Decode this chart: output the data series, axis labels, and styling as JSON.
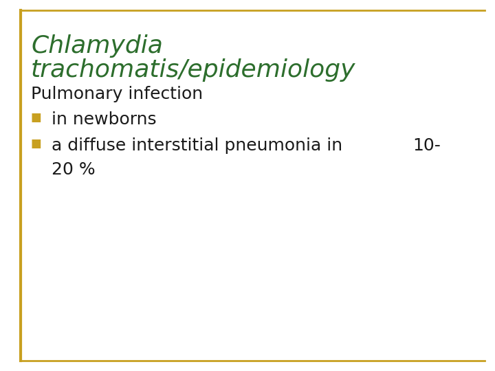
{
  "title_line1": "Chlamydia",
  "title_line2": "trachomatis/epidemiology",
  "subtitle": "Pulmonary infection",
  "bullet1": "in newborns",
  "bullet2_line1": "a diffuse interstitial pneumonia in",
  "bullet2_line2": "20 %",
  "bullet2_right": "10-",
  "title_color": "#2d6e2d",
  "subtitle_color": "#1a1a1a",
  "bullet_color": "#1a1a1a",
  "bullet_marker_color": "#c8a020",
  "border_color": "#c8a020",
  "bg_color": "#ffffff",
  "title_fontsize": 26,
  "subtitle_fontsize": 18,
  "bullet_fontsize": 18
}
